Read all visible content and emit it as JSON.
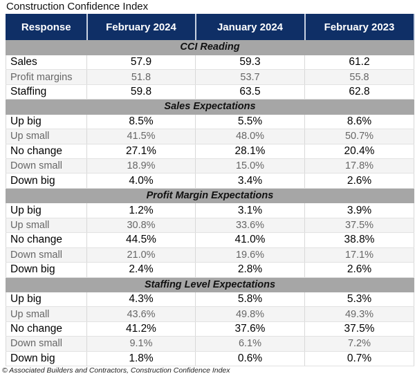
{
  "title": "Construction Confidence Index",
  "colors": {
    "header_bg": "#0f2f66",
    "section_bg": "#a6a6a6",
    "alt_row_bg": "#f4f4f4"
  },
  "columns": [
    "Response",
    "February 2024",
    "January 2024",
    "February 2023"
  ],
  "sections": [
    {
      "label": "CCI Reading",
      "rows": [
        [
          "Sales",
          "57.9",
          "59.3",
          "61.2"
        ],
        [
          "Profit margins",
          "51.8",
          "53.7",
          "55.8"
        ],
        [
          "Staffing",
          "59.8",
          "63.5",
          "62.8"
        ]
      ]
    },
    {
      "label": "Sales Expectations",
      "rows": [
        [
          "Up big",
          "8.5%",
          "5.5%",
          "8.6%"
        ],
        [
          "Up small",
          "41.5%",
          "48.0%",
          "50.7%"
        ],
        [
          "No change",
          "27.1%",
          "28.1%",
          "20.4%"
        ],
        [
          "Down small",
          "18.9%",
          "15.0%",
          "17.8%"
        ],
        [
          "Down big",
          "4.0%",
          "3.4%",
          "2.6%"
        ]
      ]
    },
    {
      "label": "Profit Margin Expectations",
      "rows": [
        [
          "Up big",
          "1.2%",
          "3.1%",
          "3.9%"
        ],
        [
          "Up small",
          "30.8%",
          "33.6%",
          "37.5%"
        ],
        [
          "No change",
          "44.5%",
          "41.0%",
          "38.8%"
        ],
        [
          "Down small",
          "21.0%",
          "19.6%",
          "17.1%"
        ],
        [
          "Down big",
          "2.4%",
          "2.8%",
          "2.6%"
        ]
      ]
    },
    {
      "label": "Staffing Level Expectations",
      "rows": [
        [
          "Up big",
          "4.3%",
          "5.8%",
          "5.3%"
        ],
        [
          "Up small",
          "43.6%",
          "49.8%",
          "49.3%"
        ],
        [
          "No change",
          "41.2%",
          "37.6%",
          "37.5%"
        ],
        [
          "Down small",
          "9.1%",
          "6.1%",
          "7.2%"
        ],
        [
          "Down big",
          "1.8%",
          "0.6%",
          "0.7%"
        ]
      ]
    }
  ],
  "footer": "© Associated Builders and Contractors, Construction Confidence Index"
}
